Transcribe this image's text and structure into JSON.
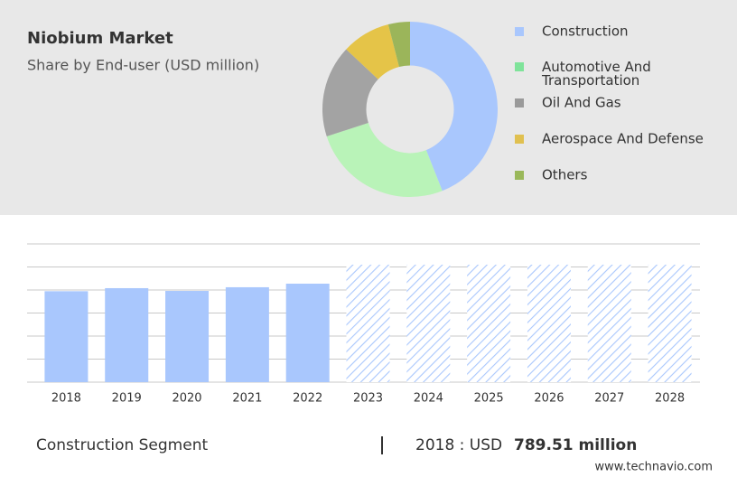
{
  "chart_data": [
    {
      "type": "pie",
      "title": "Niobium Market",
      "subtitle": "Share by End-user (USD million)",
      "categories": [
        "Construction",
        "Automotive And\nTransportation",
        "Oil And Gas",
        "Aerospace And Defense",
        "Others"
      ],
      "values": [
        44,
        26,
        17,
        9,
        4
      ],
      "colors": [
        "#a9c7fd",
        "#b9f3b8",
        "#a3a3a3",
        "#e5c448",
        "#9bb55a"
      ],
      "legend_colors": [
        "#a9c7fd",
        "#7fe39a",
        "#9a9a9a",
        "#e0c050",
        "#9ab85a"
      ],
      "hole": 0.5
    },
    {
      "type": "bar",
      "categories": [
        "2018",
        "2019",
        "2020",
        "2021",
        "2022",
        "2023",
        "2024",
        "2025",
        "2026",
        "2027",
        "2028"
      ],
      "values": [
        789.51,
        816,
        792,
        824,
        855,
        1020,
        1020,
        1020,
        1020,
        1020,
        1020
      ],
      "hatched": [
        false,
        false,
        false,
        false,
        false,
        true,
        true,
        true,
        true,
        true,
        true
      ],
      "color": "#a9c7fd",
      "ylim": [
        0,
        1200
      ],
      "yticks": [
        0,
        200,
        400,
        600,
        800,
        1000,
        1200
      ],
      "grid": true
    }
  ],
  "footer": {
    "segment": "Construction Segment",
    "label": "2018 : USD",
    "value": "789.51 million",
    "source": "www.technavio.com"
  }
}
